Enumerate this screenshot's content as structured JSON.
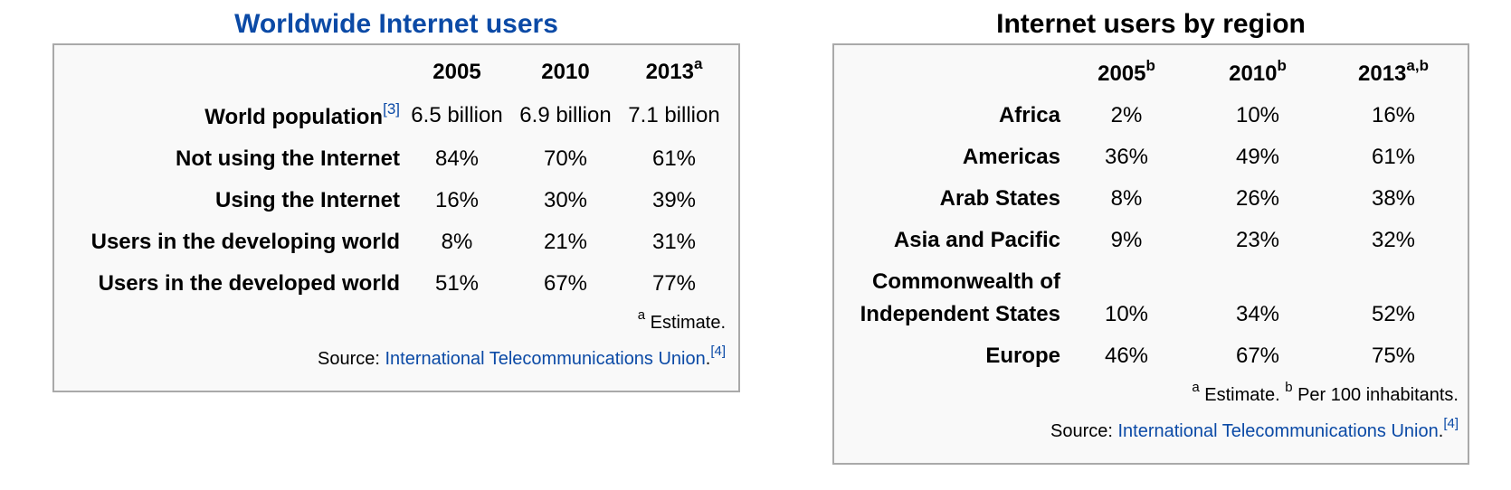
{
  "left_table": {
    "caption": "Worldwide Internet users",
    "columns": [
      {
        "year": "2005",
        "sup": ""
      },
      {
        "year": "2010",
        "sup": ""
      },
      {
        "year": "2013",
        "sup": "a"
      }
    ],
    "rows": [
      {
        "label": "World population",
        "ref": "[3]",
        "values": [
          "6.5 billion",
          "6.9 billion",
          "7.1 billion"
        ]
      },
      {
        "label": "Not using the Internet",
        "ref": "",
        "values": [
          "84%",
          "70%",
          "61%"
        ]
      },
      {
        "label": "Using the Internet",
        "ref": "",
        "values": [
          "16%",
          "30%",
          "39%"
        ]
      },
      {
        "label": "Users in the developing world",
        "ref": "",
        "values": [
          "8%",
          "21%",
          "31%"
        ]
      },
      {
        "label": "Users in the developed world",
        "ref": "",
        "values": [
          "51%",
          "67%",
          "77%"
        ]
      }
    ],
    "footnote_mark": "a",
    "footnote_text": " Estimate.",
    "source_prefix": "Source: ",
    "source_link": "International Telecommunications Union",
    "source_suffix": ".",
    "source_ref": "[4]"
  },
  "right_table": {
    "caption": "Internet users by region",
    "columns": [
      {
        "year": "2005",
        "sup": "b"
      },
      {
        "year": "2010",
        "sup": "b"
      },
      {
        "year": "2013",
        "sup": "a,b"
      }
    ],
    "rows": [
      {
        "label_lines": [
          "Africa"
        ],
        "values": [
          "2%",
          "10%",
          "16%"
        ]
      },
      {
        "label_lines": [
          "Americas"
        ],
        "values": [
          "36%",
          "49%",
          "61%"
        ]
      },
      {
        "label_lines": [
          "Arab States"
        ],
        "values": [
          "8%",
          "26%",
          "38%"
        ]
      },
      {
        "label_lines": [
          "Asia and Pacific"
        ],
        "values": [
          "9%",
          "23%",
          "32%"
        ]
      },
      {
        "label_lines": [
          "Commonwealth of",
          "Independent States"
        ],
        "values": [
          "10%",
          "34%",
          "52%"
        ]
      },
      {
        "label_lines": [
          "Europe"
        ],
        "values": [
          "46%",
          "67%",
          "75%"
        ]
      }
    ],
    "footnote_mark_a": "a",
    "footnote_text_a": " Estimate. ",
    "footnote_mark_b": "b",
    "footnote_text_b": " Per 100 inhabitants.",
    "source_prefix": "Source: ",
    "source_link": "International Telecommunications Union",
    "source_suffix": ".",
    "source_ref": "[4]"
  },
  "colors": {
    "link": "#0b4aa6",
    "box_background": "#f9f9f9",
    "box_border": "#a9a9a9"
  }
}
